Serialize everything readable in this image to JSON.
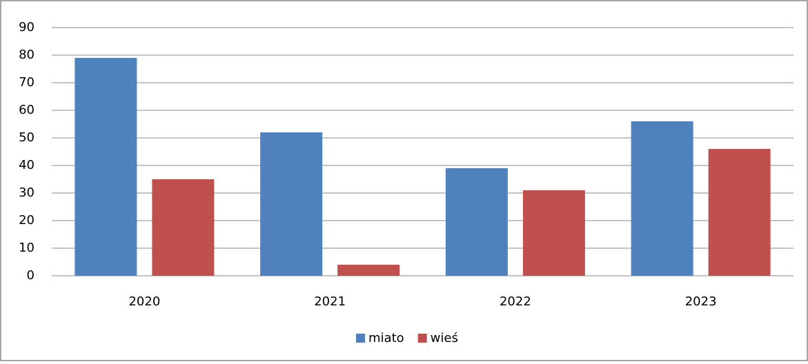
{
  "chart_data": {
    "type": "bar",
    "categories": [
      "2020",
      "2021",
      "2022",
      "2023"
    ],
    "series": [
      {
        "name": "miato",
        "color": "#4f81bd",
        "values": [
          79,
          52,
          39,
          56
        ]
      },
      {
        "name": "wieś",
        "color": "#c0504d",
        "values": [
          35,
          4,
          31,
          46
        ]
      }
    ],
    "ylim": [
      0,
      90
    ],
    "yticks": [
      0,
      10,
      20,
      30,
      40,
      50,
      60,
      70,
      80,
      90
    ],
    "grid": true,
    "legend": "bottom"
  }
}
